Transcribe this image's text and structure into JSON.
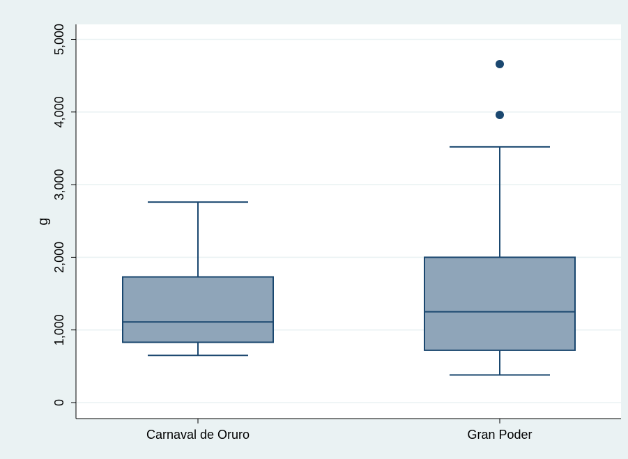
{
  "chart_data": {
    "type": "box",
    "title": "",
    "ylabel": "g",
    "xlabel": "",
    "ylim": [
      -230,
      5230
    ],
    "yticks": [
      0,
      1000,
      2000,
      3000,
      4000,
      5000
    ],
    "ytick_labels": [
      "0",
      "1,000",
      "2,000",
      "3,000",
      "4,000",
      "5,000"
    ],
    "grid": true,
    "categories": [
      "Carnaval de Oruro",
      "Gran Poder"
    ],
    "boxes": [
      {
        "category": "Carnaval de Oruro",
        "whisker_low": 650,
        "q1": 830,
        "median": 1110,
        "q3": 1730,
        "whisker_high": 2760,
        "outliers": []
      },
      {
        "category": "Gran Poder",
        "whisker_low": 380,
        "q1": 720,
        "median": 1250,
        "q3": 2000,
        "whisker_high": 3520,
        "outliers": [
          3960,
          4660
        ]
      }
    ],
    "colors": {
      "box_fill": "#8fa5b9",
      "line": "#1a476f",
      "grid": "#eaf2f3",
      "plot_bg": "#ffffff",
      "page_bg": "#eaf2f3"
    }
  }
}
